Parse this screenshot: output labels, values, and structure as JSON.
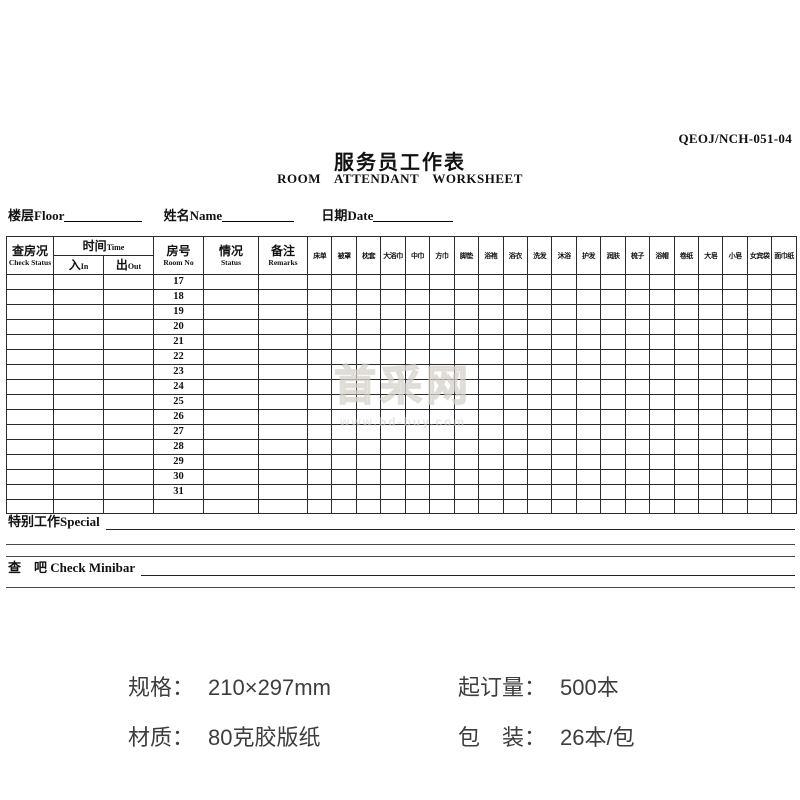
{
  "form_code": "QEOJ/NCH-051-04",
  "title_cn": "服务员工作表",
  "title_en": "ROOM ATTENDANT WORKSHEET",
  "info_fields": [
    {
      "label_cn": "楼层",
      "label_en": "Floor"
    },
    {
      "label_cn": "姓名",
      "label_en": "Name"
    },
    {
      "label_cn": "日期",
      "label_en": "Date"
    }
  ],
  "table": {
    "header": {
      "check_status_cn": "查房况",
      "check_status_en": "Check Status",
      "time_cn": "时间",
      "time_en": "Time",
      "in_cn": "入",
      "in_en": "In",
      "out_cn": "出",
      "out_en": "Out",
      "room_cn": "房号",
      "room_en": "Room No",
      "status_cn": "情况",
      "status_en": "Status",
      "remarks_cn": "备注",
      "remarks_en": "Remarks",
      "items": [
        "床单",
        "被罩",
        "枕套",
        "大浴巾",
        "中巾",
        "方巾",
        "脚垫",
        "浴袍",
        "浴衣",
        "洗发",
        "沐浴",
        "护发",
        "润肤",
        "梳子",
        "浴帽",
        "卷纸",
        "大皂",
        "小皂",
        "女宾袋",
        "面巾纸"
      ]
    },
    "room_numbers": [
      "17",
      "18",
      "19",
      "20",
      "21",
      "22",
      "23",
      "24",
      "25",
      "26",
      "27",
      "28",
      "29",
      "30",
      "31",
      ""
    ]
  },
  "special": {
    "label_cn": "特别工作",
    "label_en": "Special"
  },
  "minibar": {
    "label_cn": "查　吧",
    "label_en": "Check Minibar"
  },
  "watermark": {
    "text": "首采网",
    "url": "www.bd-buy.com"
  },
  "specs": [
    {
      "label": "规格：",
      "value": "210×297mm"
    },
    {
      "label": "材质：",
      "value": "80克胶版纸"
    },
    {
      "label": "起订量：",
      "value": "500本"
    },
    {
      "label": "包　装：",
      "value": "26本/包"
    }
  ]
}
